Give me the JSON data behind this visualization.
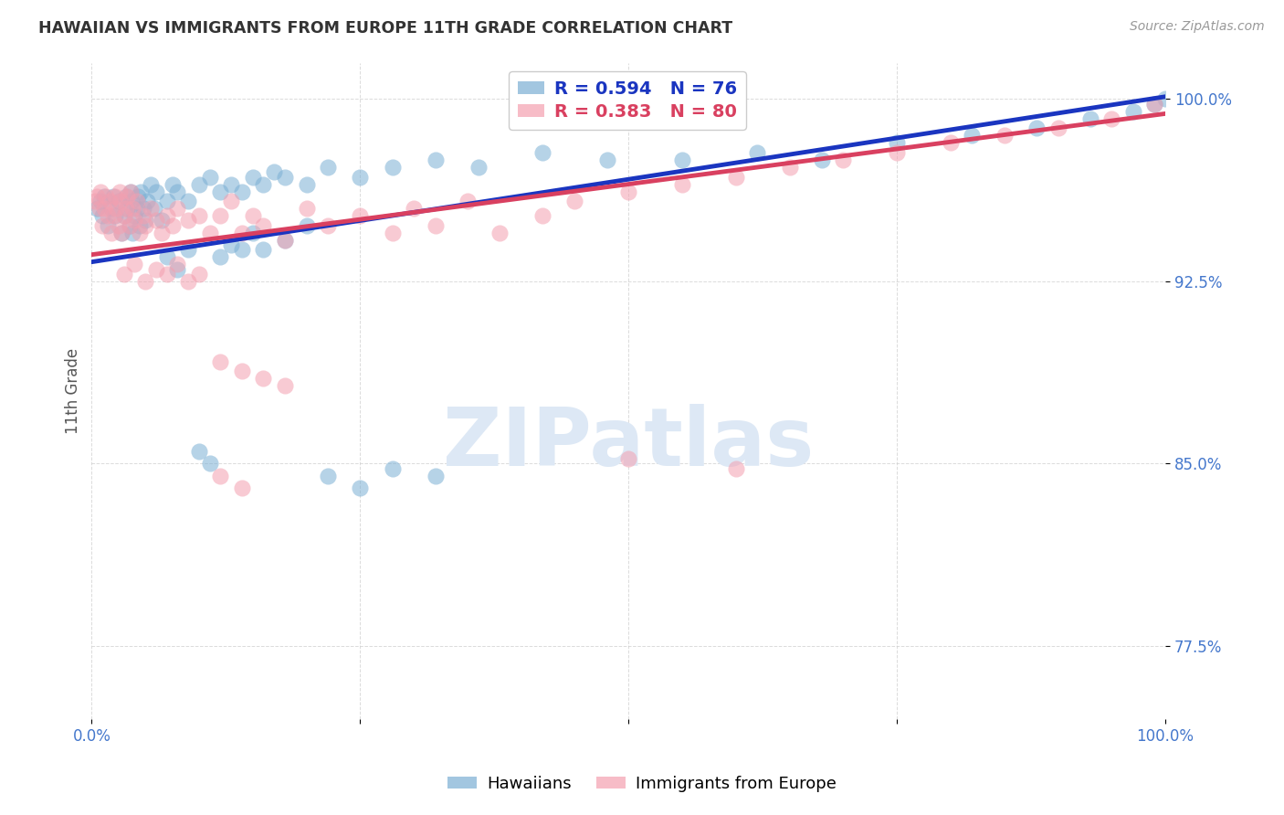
{
  "title": "HAWAIIAN VS IMMIGRANTS FROM EUROPE 11TH GRADE CORRELATION CHART",
  "source": "Source: ZipAtlas.com",
  "ylabel": "11th Grade",
  "xlim": [
    0.0,
    1.0
  ],
  "ylim": [
    0.745,
    1.015
  ],
  "ytick_positions": [
    0.775,
    0.85,
    0.925,
    1.0
  ],
  "ytick_labels": [
    "77.5%",
    "85.0%",
    "92.5%",
    "100.0%"
  ],
  "legend_blue_r": "R = 0.594",
  "legend_blue_n": "N = 76",
  "legend_pink_r": "R = 0.383",
  "legend_pink_n": "N = 80",
  "blue_color": "#7bafd4",
  "pink_color": "#f4a0b0",
  "blue_line_color": "#1a35c0",
  "pink_line_color": "#d94060",
  "background_color": "#ffffff",
  "grid_color": "#cccccc",
  "blue_x": [
    0.005,
    0.008,
    0.01,
    0.012,
    0.015,
    0.018,
    0.02,
    0.022,
    0.025,
    0.028,
    0.03,
    0.032,
    0.033,
    0.035,
    0.036,
    0.037,
    0.038,
    0.04,
    0.042,
    0.043,
    0.045,
    0.046,
    0.048,
    0.05,
    0.052,
    0.055,
    0.058,
    0.06,
    0.065,
    0.07,
    0.075,
    0.08,
    0.09,
    0.1,
    0.11,
    0.12,
    0.13,
    0.14,
    0.15,
    0.16,
    0.17,
    0.18,
    0.2,
    0.22,
    0.25,
    0.28,
    0.32,
    0.36,
    0.42,
    0.48,
    0.55,
    0.62,
    0.68,
    0.75,
    0.82,
    0.88,
    0.93,
    0.97,
    0.99,
    1.0,
    0.07,
    0.08,
    0.09,
    0.12,
    0.13,
    0.14,
    0.15,
    0.16,
    0.18,
    0.2,
    0.22,
    0.25,
    0.28,
    0.32,
    0.1,
    0.11
  ],
  "blue_y": [
    0.955,
    0.958,
    0.952,
    0.96,
    0.948,
    0.955,
    0.96,
    0.952,
    0.958,
    0.945,
    0.952,
    0.96,
    0.955,
    0.948,
    0.962,
    0.958,
    0.945,
    0.952,
    0.955,
    0.96,
    0.948,
    0.962,
    0.955,
    0.95,
    0.958,
    0.965,
    0.955,
    0.962,
    0.95,
    0.958,
    0.965,
    0.962,
    0.958,
    0.965,
    0.968,
    0.962,
    0.965,
    0.962,
    0.968,
    0.965,
    0.97,
    0.968,
    0.965,
    0.972,
    0.968,
    0.972,
    0.975,
    0.972,
    0.978,
    0.975,
    0.975,
    0.978,
    0.975,
    0.982,
    0.985,
    0.988,
    0.992,
    0.995,
    0.998,
    1.0,
    0.935,
    0.93,
    0.938,
    0.935,
    0.94,
    0.938,
    0.945,
    0.938,
    0.942,
    0.948,
    0.845,
    0.84,
    0.848,
    0.845,
    0.855,
    0.85
  ],
  "pink_x": [
    0.003,
    0.005,
    0.007,
    0.008,
    0.01,
    0.012,
    0.013,
    0.015,
    0.017,
    0.018,
    0.02,
    0.022,
    0.023,
    0.025,
    0.026,
    0.027,
    0.028,
    0.03,
    0.032,
    0.033,
    0.035,
    0.036,
    0.038,
    0.04,
    0.042,
    0.045,
    0.048,
    0.05,
    0.055,
    0.06,
    0.065,
    0.07,
    0.075,
    0.08,
    0.09,
    0.1,
    0.11,
    0.12,
    0.13,
    0.14,
    0.15,
    0.16,
    0.18,
    0.2,
    0.22,
    0.25,
    0.28,
    0.3,
    0.32,
    0.35,
    0.38,
    0.42,
    0.45,
    0.5,
    0.55,
    0.6,
    0.65,
    0.7,
    0.75,
    0.8,
    0.85,
    0.9,
    0.95,
    0.99,
    0.03,
    0.04,
    0.05,
    0.06,
    0.07,
    0.08,
    0.09,
    0.1,
    0.12,
    0.14,
    0.16,
    0.18,
    0.12,
    0.14,
    0.5,
    0.6
  ],
  "pink_y": [
    0.958,
    0.96,
    0.955,
    0.962,
    0.948,
    0.955,
    0.96,
    0.952,
    0.958,
    0.945,
    0.952,
    0.96,
    0.955,
    0.948,
    0.962,
    0.958,
    0.945,
    0.952,
    0.955,
    0.96,
    0.948,
    0.962,
    0.955,
    0.95,
    0.958,
    0.945,
    0.952,
    0.948,
    0.955,
    0.95,
    0.945,
    0.952,
    0.948,
    0.955,
    0.95,
    0.952,
    0.945,
    0.952,
    0.958,
    0.945,
    0.952,
    0.948,
    0.942,
    0.955,
    0.948,
    0.952,
    0.945,
    0.955,
    0.948,
    0.958,
    0.945,
    0.952,
    0.958,
    0.962,
    0.965,
    0.968,
    0.972,
    0.975,
    0.978,
    0.982,
    0.985,
    0.988,
    0.992,
    0.998,
    0.928,
    0.932,
    0.925,
    0.93,
    0.928,
    0.932,
    0.925,
    0.928,
    0.892,
    0.888,
    0.885,
    0.882,
    0.845,
    0.84,
    0.852,
    0.848
  ]
}
